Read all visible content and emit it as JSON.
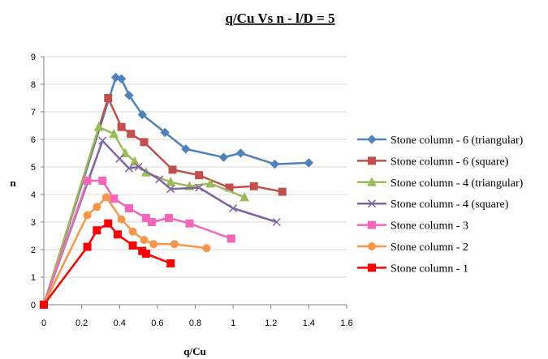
{
  "chart_data": {
    "type": "line",
    "title": "q/Cu Vs n - l/D = 5",
    "xlabel": "q/Cu",
    "ylabel": "n",
    "xlim": [
      0,
      1.6
    ],
    "ylim": [
      0,
      9
    ],
    "xticks": [
      "0",
      "0.2",
      "0.4",
      "0.6",
      "0.8",
      "1",
      "1.2",
      "1.4",
      "1.6"
    ],
    "yticks": [
      "0",
      "1",
      "2",
      "3",
      "4",
      "5",
      "6",
      "7",
      "8",
      "9"
    ],
    "grid": "horizontal",
    "legend": "right",
    "series": [
      {
        "name": "Stone column - 6 (triangular)",
        "color": "#4f81bd",
        "marker": "diamond",
        "x": [
          0,
          0.38,
          0.41,
          0.45,
          0.52,
          0.64,
          0.75,
          0.95,
          1.04,
          1.22,
          1.4
        ],
        "y": [
          0,
          8.25,
          8.2,
          7.6,
          6.9,
          6.25,
          5.65,
          5.35,
          5.5,
          5.1,
          5.15
        ]
      },
      {
        "name": "Stone column - 6 (square)",
        "color": "#c0504d",
        "marker": "square",
        "x": [
          0,
          0.34,
          0.41,
          0.46,
          0.53,
          0.68,
          0.82,
          0.98,
          1.11,
          1.26
        ],
        "y": [
          0,
          7.5,
          6.45,
          6.2,
          5.9,
          4.9,
          4.7,
          4.25,
          4.3,
          4.1
        ]
      },
      {
        "name": "Stone column - 4 (triangular)",
        "color": "#9bbb59",
        "marker": "triangle",
        "x": [
          0,
          0.29,
          0.37,
          0.43,
          0.48,
          0.54,
          0.67,
          0.77,
          0.88,
          1.06
        ],
        "y": [
          0,
          6.45,
          6.2,
          5.5,
          5.2,
          4.8,
          4.45,
          4.3,
          4.4,
          3.9
        ]
      },
      {
        "name": "Stone column - 4 (square)",
        "color": "#8064a2",
        "marker": "x",
        "x": [
          0,
          0.31,
          0.4,
          0.45,
          0.5,
          0.61,
          0.67,
          0.82,
          1.0,
          1.23
        ],
        "y": [
          0,
          5.95,
          5.3,
          4.95,
          5.0,
          4.55,
          4.2,
          4.25,
          3.5,
          3.0
        ]
      },
      {
        "name": "Stone column - 3",
        "color": "#f366ba",
        "marker": "square",
        "x": [
          0,
          0.23,
          0.31,
          0.37,
          0.45,
          0.54,
          0.57,
          0.66,
          0.77,
          0.99
        ],
        "y": [
          0,
          4.5,
          4.5,
          3.85,
          3.5,
          3.15,
          3.0,
          3.15,
          2.95,
          2.4
        ]
      },
      {
        "name": "Stone column - 2",
        "color": "#f79646",
        "marker": "circle",
        "x": [
          0,
          0.23,
          0.28,
          0.33,
          0.41,
          0.47,
          0.53,
          0.58,
          0.69,
          0.86
        ],
        "y": [
          0,
          3.25,
          3.55,
          3.9,
          3.1,
          2.65,
          2.35,
          2.2,
          2.2,
          2.05
        ]
      },
      {
        "name": "Stone column - 1",
        "color": "#ff0000",
        "marker": "square",
        "x": [
          0,
          0.23,
          0.28,
          0.34,
          0.39,
          0.47,
          0.52,
          0.54,
          0.67
        ],
        "y": [
          0,
          2.1,
          2.7,
          2.95,
          2.55,
          2.15,
          1.95,
          1.85,
          1.5
        ]
      }
    ]
  }
}
